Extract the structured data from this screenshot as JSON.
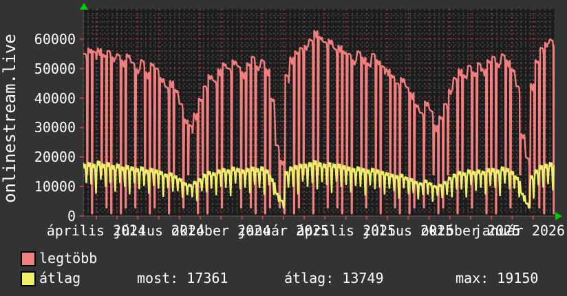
{
  "graph": {
    "ylabel": "onlinestream.live",
    "y_ticks": [
      "0",
      "10000",
      "20000",
      "30000",
      "40000",
      "50000",
      "60000"
    ],
    "x_labels": [
      "április 2024",
      "július 2024",
      "október 2024",
      "január 2025",
      "április 2025",
      "július 2025",
      "október 2025",
      "január 2026"
    ]
  },
  "legend": {
    "series1": "legtöbb",
    "series2": "átlag"
  },
  "stats": {
    "most": "most: 17361",
    "atlag": "átlag: 13749",
    "max": "max: 19150"
  },
  "colors": {
    "background": "#333333",
    "plot_background": "#1c1c1c",
    "grid_minor": "#4a4a4a",
    "grid_major": "#943a3a",
    "axis_tick": "#c84040",
    "axis_edge": "#5a5a5a",
    "arrow": "#00cc00",
    "text": "#ffffff",
    "max_line": "#f27e7e",
    "avg_line": "#f0ef6a"
  },
  "chart_data": {
    "type": "line",
    "title": "",
    "ylabel": "onlinestream.live",
    "x_start": "2024-03",
    "x_end": "2026-02",
    "x_step": "weekly",
    "ylim": [
      0,
      70000
    ],
    "y_tick_step": 10000,
    "grid": true,
    "legend_position": "bottom-left",
    "x_tick_labels": [
      "április 2024",
      "július 2024",
      "október 2024",
      "január 2025",
      "április 2025",
      "július 2025",
      "október 2025",
      "január 2026"
    ],
    "series": [
      {
        "name": "legtöbb",
        "values": [
          55000,
          57000,
          56000,
          57000,
          55000,
          56000,
          54000,
          55000,
          53000,
          55000,
          52000,
          50000,
          53000,
          49000,
          52000,
          50000,
          47000,
          44000,
          46000,
          43000,
          38000,
          33000,
          31000,
          35000,
          40000,
          44000,
          48000,
          46000,
          50000,
          52000,
          50000,
          53000,
          51000,
          49000,
          52000,
          54000,
          51000,
          53000,
          50000,
          40000,
          24000,
          19000,
          48000,
          54000,
          56000,
          57000,
          58000,
          60000,
          63000,
          61000,
          59000,
          60000,
          57000,
          58000,
          56000,
          55000,
          53000,
          56000,
          54000,
          52000,
          55000,
          53000,
          51000,
          50000,
          48000,
          45000,
          47000,
          44000,
          42000,
          38000,
          35000,
          39000,
          36000,
          31000,
          34000,
          38000,
          43000,
          47000,
          50000,
          48000,
          51000,
          49000,
          52000,
          50000,
          53000,
          54000,
          52000,
          55000,
          53000,
          50000,
          44000,
          28000,
          20000,
          45000,
          53000,
          57000,
          59000,
          60000,
          58000
        ]
      },
      {
        "name": "átlag",
        "values": [
          18000,
          18500,
          18000,
          19000,
          18000,
          18500,
          17500,
          18000,
          17000,
          17500,
          17000,
          16500,
          17000,
          16000,
          16500,
          16000,
          15500,
          14500,
          15000,
          14000,
          13000,
          11500,
          11000,
          12000,
          13000,
          14500,
          15500,
          15000,
          16000,
          16500,
          16000,
          17000,
          16500,
          16000,
          16500,
          17000,
          16500,
          17000,
          16000,
          13000,
          8000,
          5500,
          15500,
          17000,
          17500,
          18000,
          18000,
          18500,
          19200,
          18500,
          18000,
          18500,
          18000,
          18000,
          17500,
          17000,
          16500,
          17000,
          16500,
          16000,
          16500,
          16000,
          15500,
          15000,
          14500,
          14000,
          14500,
          13500,
          13000,
          12000,
          11500,
          12500,
          11500,
          10500,
          11000,
          12000,
          13500,
          14500,
          15500,
          15000,
          16000,
          15500,
          16000,
          15500,
          16500,
          16500,
          16000,
          17000,
          16500,
          15500,
          13500,
          8000,
          4500,
          14000,
          16000,
          17500,
          18000,
          18500,
          17400
        ]
      }
    ],
    "max_drop_pattern": "110111011010111101101101110110101111011011011101101011110110110111011010111101101101110110101111011",
    "stats": {
      "most": 17361,
      "atlag": 13749,
      "max": 19150
    }
  }
}
